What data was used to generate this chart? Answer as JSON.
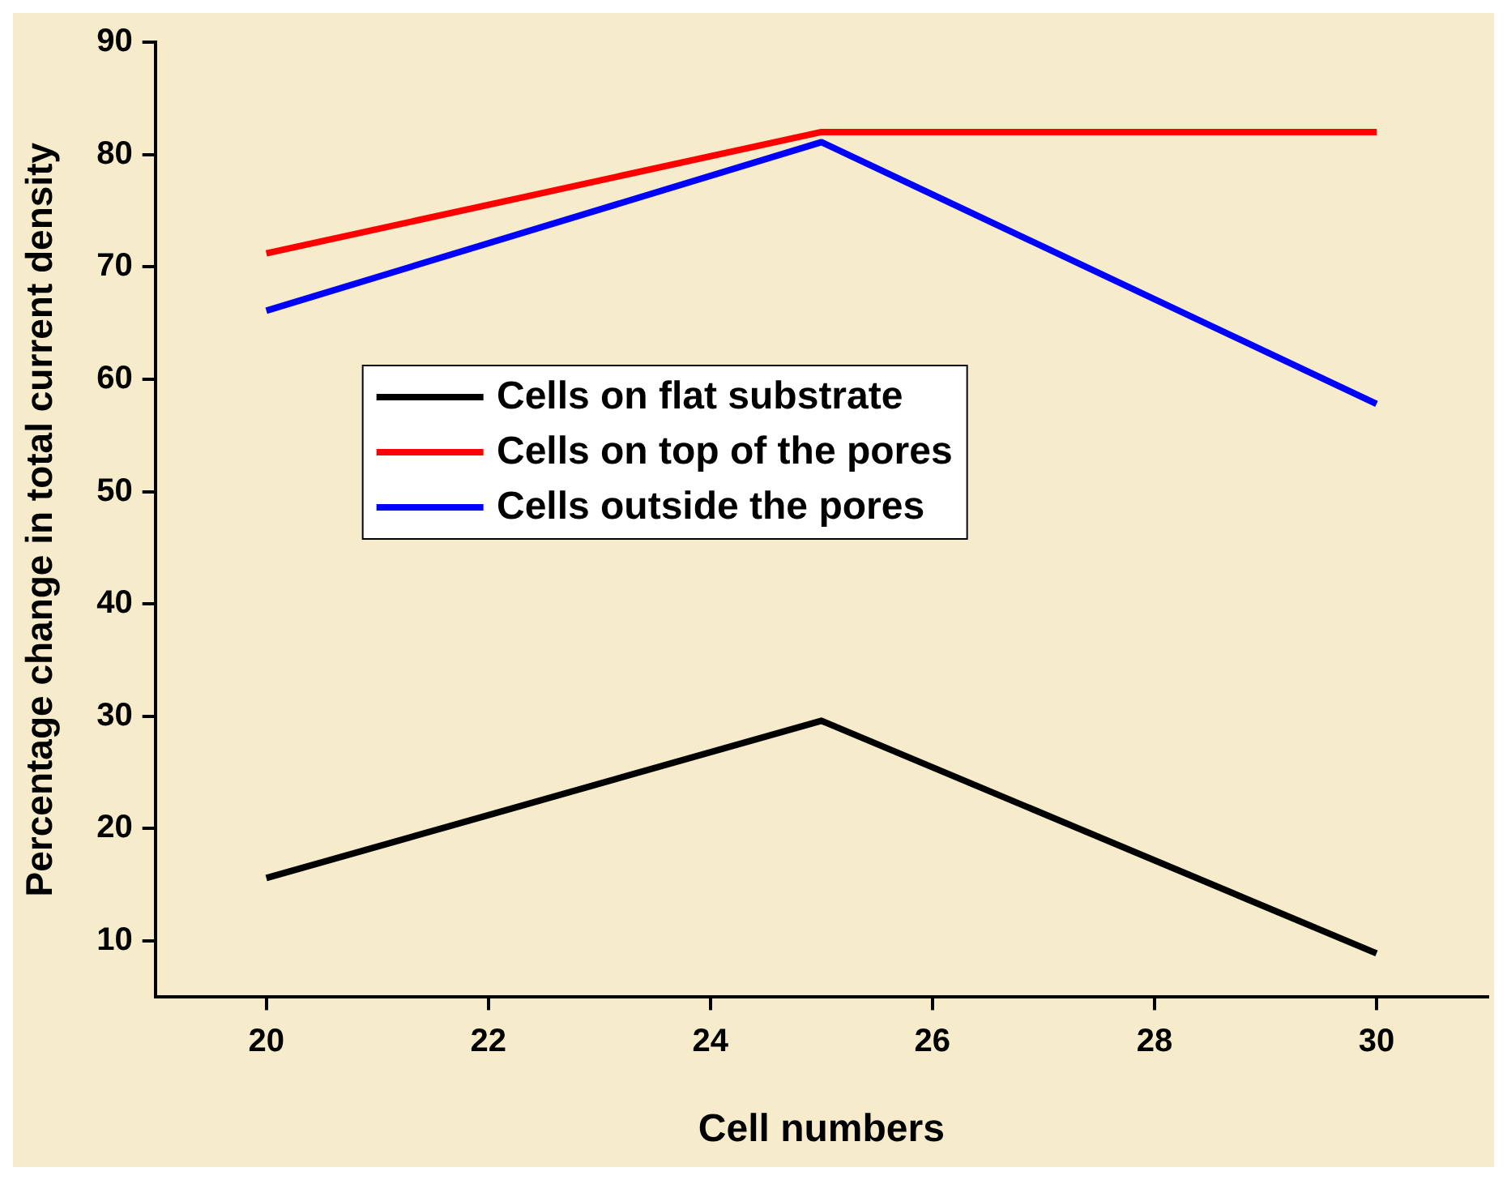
{
  "chart_data": {
    "type": "line",
    "xlabel": "Cell numbers",
    "ylabel": "Percentage change in total current density",
    "x": [
      20,
      25,
      30
    ],
    "series": [
      {
        "name": "Cells on flat substrate",
        "color": "#000000",
        "values": [
          15.6,
          29.6,
          8.9
        ]
      },
      {
        "name": "Cells on top of the pores",
        "color": "#ff0000",
        "values": [
          71.2,
          82,
          82
        ]
      },
      {
        "name": "Cells outside the pores",
        "color": "#0000ff",
        "values": [
          66.1,
          81.1,
          57.8
        ]
      }
    ],
    "xlim": [
      19,
      31
    ],
    "xticks": [
      20,
      22,
      24,
      26,
      28,
      30
    ],
    "ylim": [
      5,
      90
    ],
    "yticks": [
      10,
      20,
      30,
      40,
      50,
      60,
      70,
      80,
      90
    ],
    "grid": false,
    "legend": "center",
    "marker": "none",
    "line_style": "solid"
  }
}
